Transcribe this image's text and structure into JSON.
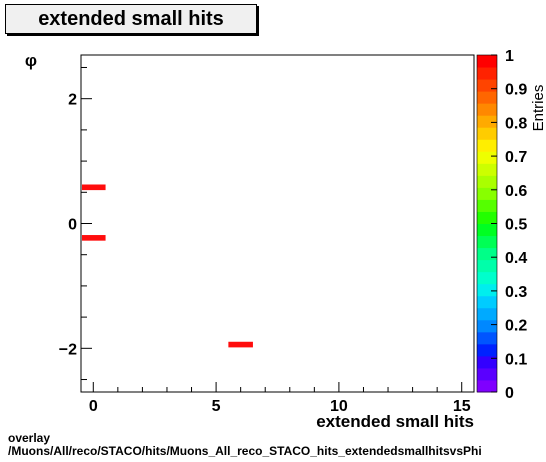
{
  "chart_data": {
    "type": "heatmap",
    "title": "extended small hits",
    "xlabel": "extended small hits",
    "ylabel": "φ",
    "xlim": [
      -0.5,
      15.5
    ],
    "ylim": [
      -2.7,
      2.7
    ],
    "x_ticks": [
      0,
      5,
      10,
      15
    ],
    "x_tick_labels": [
      "0",
      "5",
      "10",
      "15"
    ],
    "y_ticks": [
      -2,
      0,
      2
    ],
    "y_tick_labels": [
      "−2",
      "0",
      "2"
    ],
    "colorbar": {
      "title": "Entries",
      "range": [
        0,
        1
      ],
      "ticks": [
        0,
        0.1,
        0.2,
        0.3,
        0.4,
        0.5,
        0.6,
        0.7,
        0.8,
        0.9,
        1
      ],
      "tick_labels": [
        "0",
        "0.1",
        "0.2",
        "0.3",
        "0.4",
        "0.5",
        "0.6",
        "0.7",
        "0.8",
        "0.9",
        "1"
      ]
    },
    "cells": [
      {
        "x": 0,
        "y": 0.58,
        "value": 1
      },
      {
        "x": 0,
        "y": -0.23,
        "value": 1
      },
      {
        "x": 6,
        "y": -1.94,
        "value": 1
      }
    ]
  },
  "footer": {
    "line1": "overlay",
    "line2": "/Muons/All/reco/STACO/hits/Muons_All_reco_STACO_hits_extendedsmallhitsvsPhi"
  },
  "colors": {
    "cell": "#ff0d0d",
    "palette": [
      "#7f00ff",
      "#5a00ff",
      "#3300ff",
      "#0022ff",
      "#0055ff",
      "#0088ff",
      "#00aaff",
      "#00ccff",
      "#00eeee",
      "#00ffcc",
      "#00ffaa",
      "#00ff88",
      "#00ff55",
      "#00ff22",
      "#22ff00",
      "#55ff00",
      "#88ff00",
      "#aaff00",
      "#ccff00",
      "#eeff00",
      "#ffee00",
      "#ffcc00",
      "#ffaa00",
      "#ff8800",
      "#ff6600",
      "#ff4400",
      "#ff2200",
      "#ff0000"
    ]
  }
}
